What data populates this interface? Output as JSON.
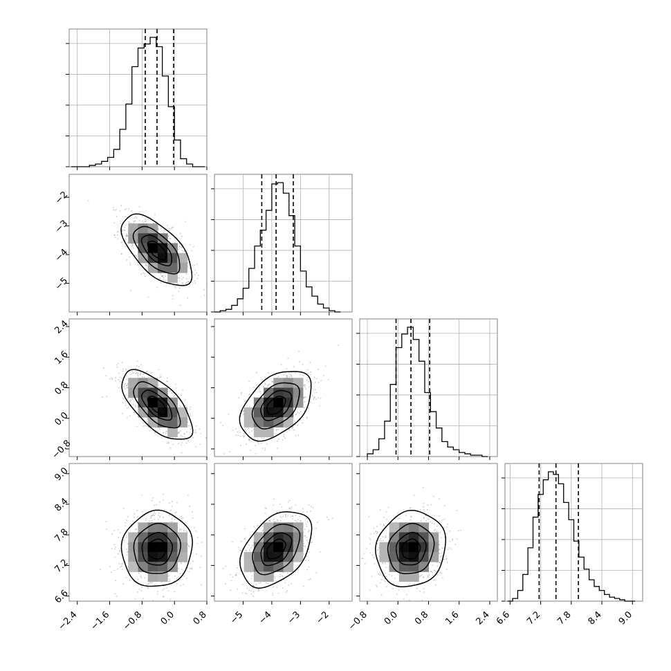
{
  "chart_data": {
    "type": "corner",
    "title": "",
    "parameters": [
      {
        "index": 0,
        "range": [
          -2.6,
          0.8
        ],
        "ticks": [
          "−2.4",
          "−1.6",
          "−0.8",
          "0.0",
          "0.8"
        ],
        "tick_values": [
          -2.4,
          -1.6,
          -0.8,
          0.0,
          0.8
        ],
        "quantiles": {
          "q16": -0.72,
          "median": -0.43,
          "q84": -0.02
        },
        "histogram": {
          "bin_edges": [
            -2.55,
            -2.4,
            -2.25,
            -2.1,
            -1.95,
            -1.8,
            -1.65,
            -1.5,
            -1.35,
            -1.2,
            -1.05,
            -0.9,
            -0.75,
            -0.6,
            -0.45,
            -0.3,
            -0.15,
            0.0,
            0.15,
            0.3,
            0.45,
            0.6,
            0.75
          ],
          "counts": [
            0,
            0,
            0,
            1,
            2,
            4,
            7,
            13,
            28,
            47,
            75,
            89,
            92,
            97,
            90,
            68,
            45,
            20,
            6,
            2,
            0,
            0
          ]
        }
      },
      {
        "index": 1,
        "range": [
          -6.0,
          -1.2
        ],
        "ticks": [
          "−5",
          "−4",
          "−3",
          "−2"
        ],
        "tick_values": [
          -5,
          -4,
          -3,
          -2
        ],
        "quantiles": {
          "q16": -4.35,
          "median": -3.85,
          "q84": -3.25
        },
        "histogram": {
          "bin_edges": [
            -6.0,
            -5.8,
            -5.6,
            -5.4,
            -5.2,
            -5.0,
            -4.8,
            -4.6,
            -4.4,
            -4.2,
            -4.0,
            -3.8,
            -3.6,
            -3.4,
            -3.2,
            -3.0,
            -2.8,
            -2.6,
            -2.4,
            -2.2,
            -2.0,
            -1.8,
            -1.6
          ],
          "counts": [
            0,
            1,
            2,
            5,
            10,
            18,
            33,
            50,
            62,
            77,
            97,
            98,
            90,
            73,
            50,
            31,
            19,
            12,
            6,
            3,
            1,
            0
          ]
        }
      },
      {
        "index": 2,
        "range": [
          -1.0,
          2.6
        ],
        "ticks": [
          "−0.8",
          "0.0",
          "0.8",
          "1.6",
          "2.4"
        ],
        "tick_values": [
          -0.8,
          0.0,
          0.8,
          1.6,
          2.4
        ],
        "quantiles": {
          "q16": -0.05,
          "median": 0.34,
          "q84": 0.83
        },
        "histogram": {
          "bin_edges": [
            -0.8,
            -0.65,
            -0.5,
            -0.35,
            -0.2,
            -0.05,
            0.1,
            0.25,
            0.4,
            0.55,
            0.7,
            0.85,
            1.0,
            1.15,
            1.3,
            1.45,
            1.6,
            1.75,
            1.9,
            2.05,
            2.2,
            2.35
          ],
          "counts": [
            2,
            5,
            13,
            26,
            53,
            80,
            90,
            95,
            86,
            70,
            47,
            33,
            21,
            11,
            7,
            5,
            3,
            2,
            1,
            1,
            0
          ]
        }
      },
      {
        "index": 3,
        "range": [
          6.5,
          9.2
        ],
        "ticks": [
          "6.6",
          "7.2",
          "7.8",
          "8.4",
          "9.0"
        ],
        "tick_values": [
          6.6,
          7.2,
          7.8,
          8.4,
          9.0
        ],
        "quantiles": {
          "q16": 7.17,
          "median": 7.5,
          "q84": 7.94
        },
        "histogram": {
          "bin_edges": [
            6.55,
            6.65,
            6.75,
            6.85,
            6.95,
            7.05,
            7.15,
            7.25,
            7.35,
            7.45,
            7.55,
            7.65,
            7.75,
            7.85,
            7.95,
            8.05,
            8.15,
            8.25,
            8.35,
            8.45,
            8.55,
            8.65,
            8.75,
            8.85,
            8.95,
            9.05
          ],
          "counts": [
            0,
            2,
            8,
            20,
            40,
            63,
            80,
            91,
            97,
            95,
            88,
            74,
            61,
            45,
            33,
            24,
            16,
            11,
            8,
            5,
            3,
            2,
            1,
            0,
            0
          ]
        }
      }
    ],
    "pair_densities": [
      {
        "x": 0,
        "y": 1,
        "center": [
          -0.43,
          -3.85
        ],
        "sigma": [
          0.42,
          0.6
        ],
        "correlation": -0.62
      },
      {
        "x": 0,
        "y": 2,
        "center": [
          -0.43,
          0.34
        ],
        "sigma": [
          0.42,
          0.44
        ],
        "correlation": -0.65
      },
      {
        "x": 1,
        "y": 2,
        "center": [
          -3.85,
          0.34
        ],
        "sigma": [
          0.6,
          0.44
        ],
        "correlation": 0.45
      },
      {
        "x": 0,
        "y": 3,
        "center": [
          -0.43,
          7.52
        ],
        "sigma": [
          0.42,
          0.36
        ],
        "correlation": 0.05
      },
      {
        "x": 1,
        "y": 3,
        "center": [
          -3.85,
          7.52
        ],
        "sigma": [
          0.6,
          0.36
        ],
        "correlation": 0.42
      },
      {
        "x": 2,
        "y": 3,
        "center": [
          0.34,
          7.52
        ],
        "sigma": [
          0.44,
          0.36
        ],
        "correlation": 0.1
      }
    ],
    "contour_levels_sigma": [
      0.5,
      1.0,
      1.5,
      2.0
    ],
    "grid": true,
    "quantile_line_style": "dashed",
    "colors": {
      "line": "#000000",
      "grid": "#b0b0b0",
      "frame": "#808080",
      "scatter": "#9a9a9a",
      "density_dark": "#000000",
      "density_light": "#ffffff"
    }
  }
}
